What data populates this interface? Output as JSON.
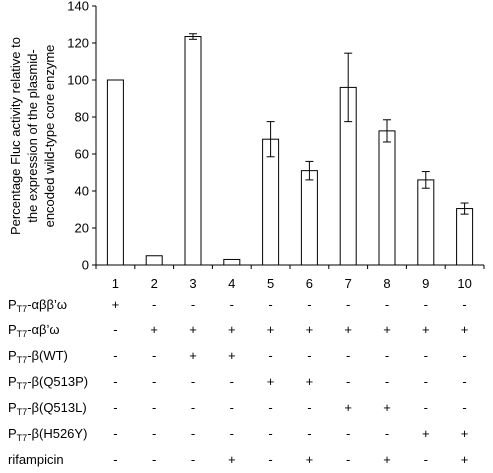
{
  "chart_data": {
    "type": "bar",
    "ylabel_lines": [
      "Percentage Fluc activity relative to",
      "the expression of the plasmid-",
      "encoded wild-type core enzyme"
    ],
    "ylim": [
      0,
      140
    ],
    "yticks": [
      "0",
      "20",
      "40",
      "60",
      "80",
      "100",
      "120",
      "140"
    ],
    "categories": [
      "1",
      "2",
      "3",
      "4",
      "5",
      "6",
      "7",
      "8",
      "9",
      "10"
    ],
    "values": [
      100,
      5,
      123.5,
      3,
      68,
      51,
      96,
      72.5,
      46,
      30.5
    ],
    "errors": [
      0,
      0,
      1.5,
      0,
      9.5,
      5,
      18.5,
      6,
      4.5,
      3
    ],
    "bar_color": "#ffffff",
    "edge_color": "#000000",
    "grid": false
  },
  "conditions": [
    {
      "label_pre": "P",
      "label_sub": "T7",
      "label_post": "-αββ’ω",
      "marks": [
        "+",
        "-",
        "-",
        "-",
        "-",
        "-",
        "-",
        "-",
        "-",
        "-"
      ]
    },
    {
      "label_pre": "P",
      "label_sub": "T7",
      "label_post": "-αβ’ω",
      "marks": [
        "-",
        "+",
        "+",
        "+",
        "+",
        "+",
        "+",
        "+",
        "+",
        "+"
      ]
    },
    {
      "label_pre": "P",
      "label_sub": "T7",
      "label_post": "-β(WT)",
      "marks": [
        "-",
        "-",
        "+",
        "+",
        "-",
        "-",
        "-",
        "-",
        "-",
        "-"
      ]
    },
    {
      "label_pre": "P",
      "label_sub": "T7",
      "label_post": "-β(Q513P)",
      "marks": [
        "-",
        "-",
        "-",
        "-",
        "+",
        "+",
        "-",
        "-",
        "-",
        "-"
      ]
    },
    {
      "label_pre": "P",
      "label_sub": "T7",
      "label_post": "-β(Q513L)",
      "marks": [
        "-",
        "-",
        "-",
        "-",
        "-",
        "-",
        "+",
        "+",
        "-",
        "-"
      ]
    },
    {
      "label_pre": "P",
      "label_sub": "T7",
      "label_post": "-β(H526Y)",
      "marks": [
        "-",
        "-",
        "-",
        "-",
        "-",
        "-",
        "-",
        "-",
        "+",
        "+"
      ]
    },
    {
      "label_pre": "rifampicin",
      "label_sub": "",
      "label_post": "",
      "marks": [
        "-",
        "-",
        "-",
        "+",
        "-",
        "+",
        "-",
        "+",
        "-",
        "+"
      ]
    }
  ]
}
